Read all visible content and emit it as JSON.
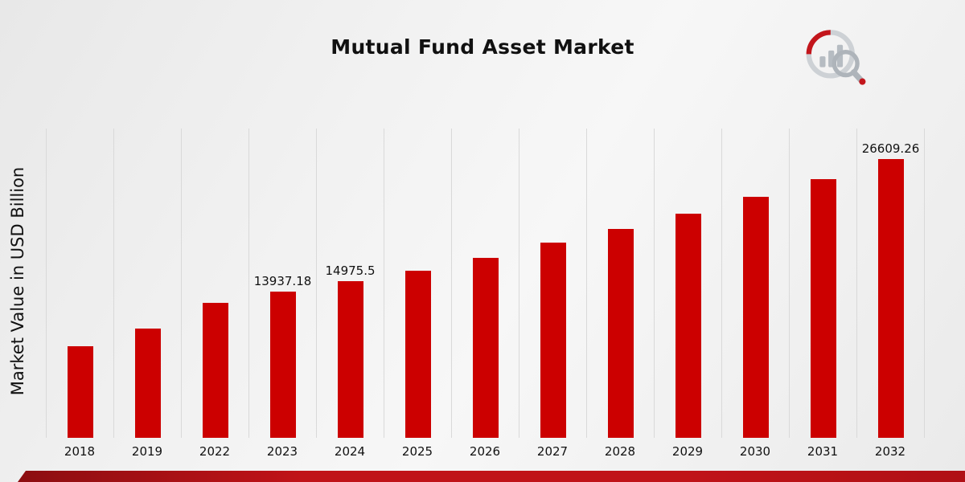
{
  "page": {
    "title": "Mutual Fund Asset Market",
    "y_axis_label": "Market Value in USD Billion",
    "accent_color": "#b01015",
    "footer_gradient_start": "#8c0e11",
    "footer_gradient_end": "#c01318"
  },
  "logo": {
    "name": "brand-logo",
    "ring_color": "#cdd1d5",
    "bar_color": "#b6bcc2",
    "accent_color": "#c3161c"
  },
  "chart_data": {
    "type": "bar",
    "title": "Mutual Fund Asset Market",
    "xlabel": "",
    "ylabel": "Market Value in USD Billion",
    "categories": [
      "2018",
      "2019",
      "2022",
      "2023",
      "2024",
      "2025",
      "2026",
      "2027",
      "2028",
      "2029",
      "2030",
      "2031",
      "2032"
    ],
    "values": [
      8700,
      10400,
      12900,
      13937.18,
      14975.5,
      15950,
      17150,
      18600,
      19900,
      21400,
      23000,
      24650,
      26609.26
    ],
    "data_labels": {
      "2023": "13937.18",
      "2024": "14975.5",
      "2032": "26609.26"
    },
    "ylim": [
      0,
      29500
    ],
    "bar_color": "#cc0000",
    "grid": "vertical-only",
    "gridline_color": "#d9d9d9",
    "legend": "none"
  }
}
